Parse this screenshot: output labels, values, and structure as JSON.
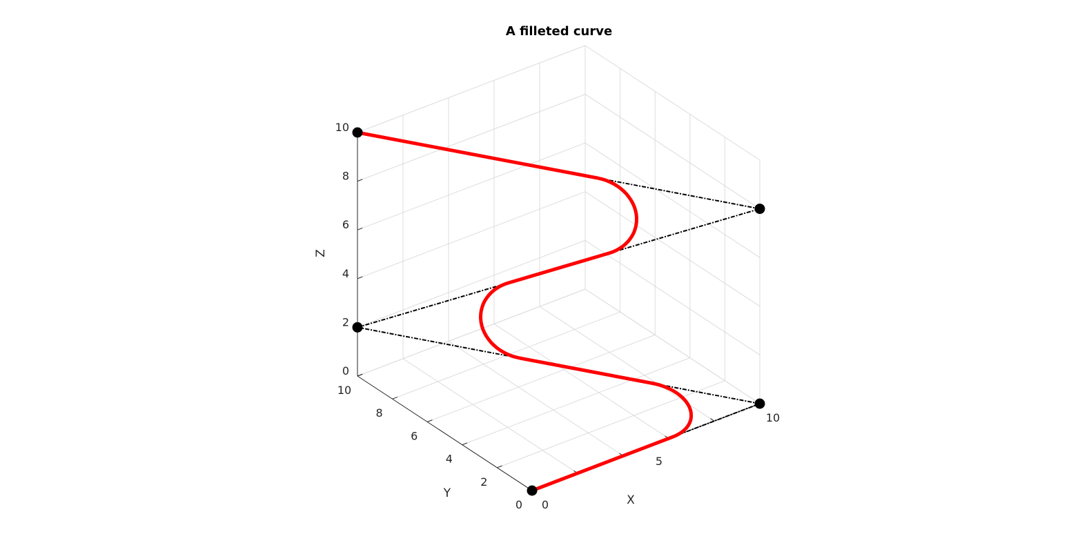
{
  "chart_data": {
    "type": "line",
    "title": "A filleted curve",
    "xlabel": "X",
    "ylabel": "Y",
    "zlabel": "Z",
    "xlim": [
      0,
      10
    ],
    "ylim": [
      0,
      10
    ],
    "zlim": [
      0,
      10
    ],
    "grid": true,
    "x_ticks": [
      0,
      5,
      10
    ],
    "y_ticks": [
      0,
      2,
      4,
      6,
      8,
      10
    ],
    "z_ticks": [
      0,
      2,
      4,
      6,
      8,
      10
    ],
    "series": [
      {
        "role": "control_polygon",
        "style": "dash-dot",
        "color": "#000000",
        "points": [
          [
            0,
            0,
            0
          ],
          [
            10,
            0,
            0
          ],
          [
            0,
            10,
            2
          ],
          [
            10,
            0,
            8
          ],
          [
            0,
            10,
            10
          ]
        ]
      },
      {
        "role": "filleted_curve",
        "style": "solid",
        "color": "#ff0000",
        "fillet_radius": 1.6,
        "points": [
          [
            0,
            0,
            0
          ],
          [
            10,
            0,
            0
          ],
          [
            0,
            10,
            2
          ],
          [
            10,
            0,
            8
          ],
          [
            0,
            10,
            10
          ]
        ]
      }
    ],
    "markers": [
      [
        0,
        0,
        0
      ],
      [
        10,
        0,
        0
      ],
      [
        0,
        10,
        2
      ],
      [
        10,
        0,
        8
      ],
      [
        0,
        10,
        10
      ]
    ]
  }
}
